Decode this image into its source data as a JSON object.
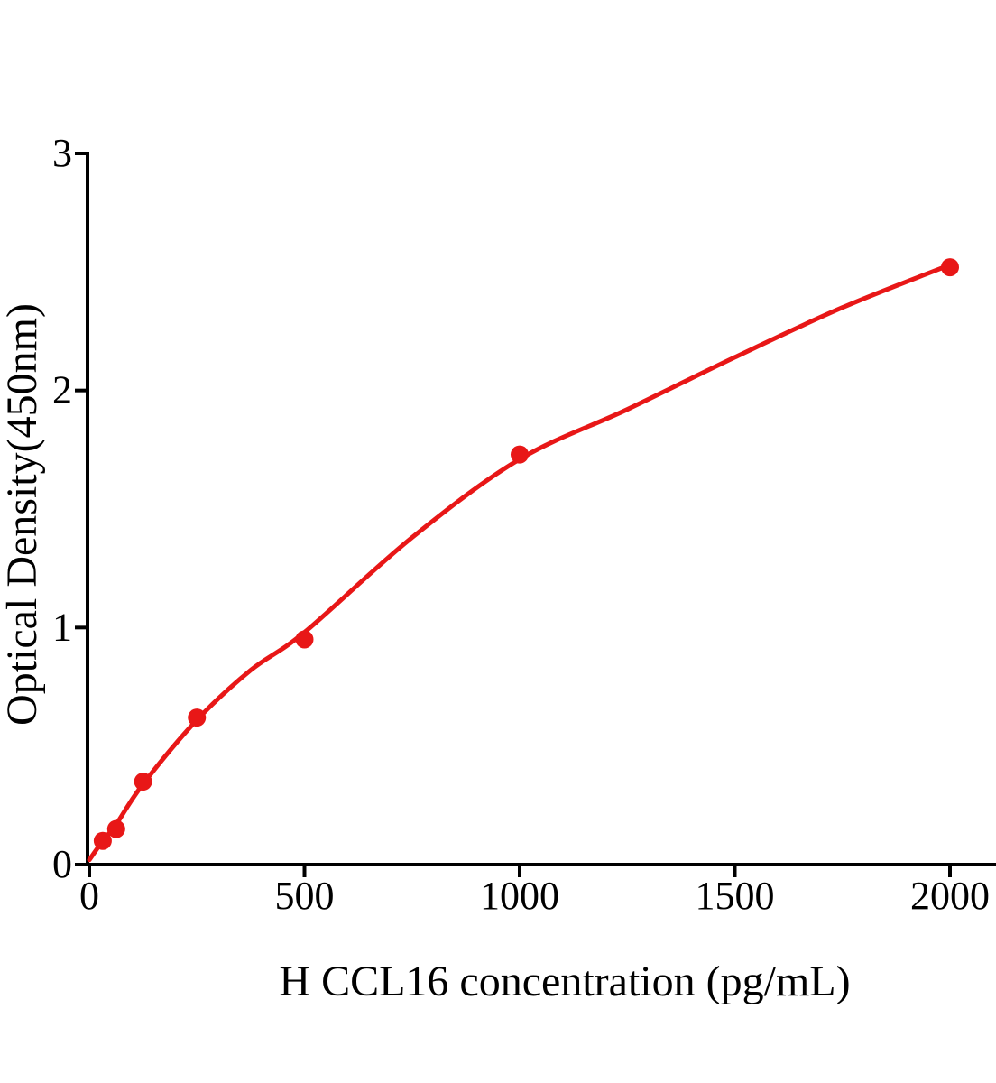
{
  "figure": {
    "background_color": "#ffffff",
    "text_color": "#000000"
  },
  "chart_data": {
    "type": "scatter",
    "subtype": "elisa-standard-curve-with-fit-line",
    "title": "",
    "xlabel": "H CCL16 concentration (pg/mL)",
    "ylabel": "Optical Density(450nm)",
    "xlim": [
      0,
      2110
    ],
    "ylim": [
      0,
      3
    ],
    "grid": false,
    "legend": null,
    "x_tick_values": [
      0,
      500,
      1000,
      1500,
      2000
    ],
    "x_tick_labels": [
      "0",
      "500",
      "1000",
      "1500",
      "2000"
    ],
    "y_tick_values": [
      0,
      1,
      2,
      3
    ],
    "y_tick_labels": [
      "0",
      "1",
      "2",
      "3"
    ],
    "colors": {
      "marker": "#e81717",
      "curve": "#e81717",
      "axis": "#000000"
    },
    "series": [
      {
        "name": "standard-points",
        "type": "scatter",
        "points": [
          [
            31.25,
            0.1
          ],
          [
            62.5,
            0.15
          ],
          [
            125,
            0.35
          ],
          [
            250,
            0.62
          ],
          [
            500,
            0.95
          ],
          [
            1000,
            1.73
          ],
          [
            2000,
            2.52
          ]
        ]
      },
      {
        "name": "fit-curve",
        "type": "line",
        "points": [
          [
            0,
            0.02
          ],
          [
            31.25,
            0.1
          ],
          [
            62.5,
            0.17
          ],
          [
            125,
            0.34
          ],
          [
            250,
            0.61
          ],
          [
            375,
            0.82
          ],
          [
            500,
            0.98
          ],
          [
            750,
            1.38
          ],
          [
            1000,
            1.71
          ],
          [
            1250,
            1.92
          ],
          [
            1500,
            2.14
          ],
          [
            1750,
            2.35
          ],
          [
            2000,
            2.53
          ]
        ]
      }
    ]
  }
}
